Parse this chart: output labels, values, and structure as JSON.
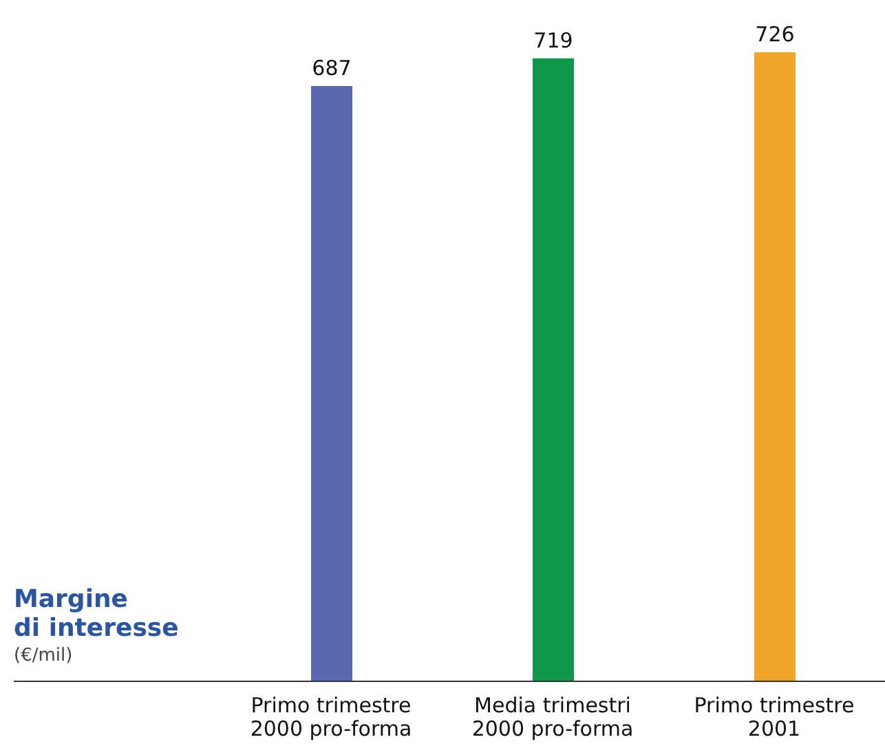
{
  "chart_data": {
    "type": "bar",
    "title": "Margine\ndi interesse",
    "subtitle": "(€/mil)",
    "categories": [
      "Primo trimestre\n2000 pro-forma",
      "Media trimestri\n2000 pro-forma",
      "Primo trimestre\n2001"
    ],
    "values": [
      687,
      719,
      726
    ],
    "colors": [
      "#5a68b0",
      "#10984a",
      "#f0a42c"
    ],
    "data_labels": true
  }
}
